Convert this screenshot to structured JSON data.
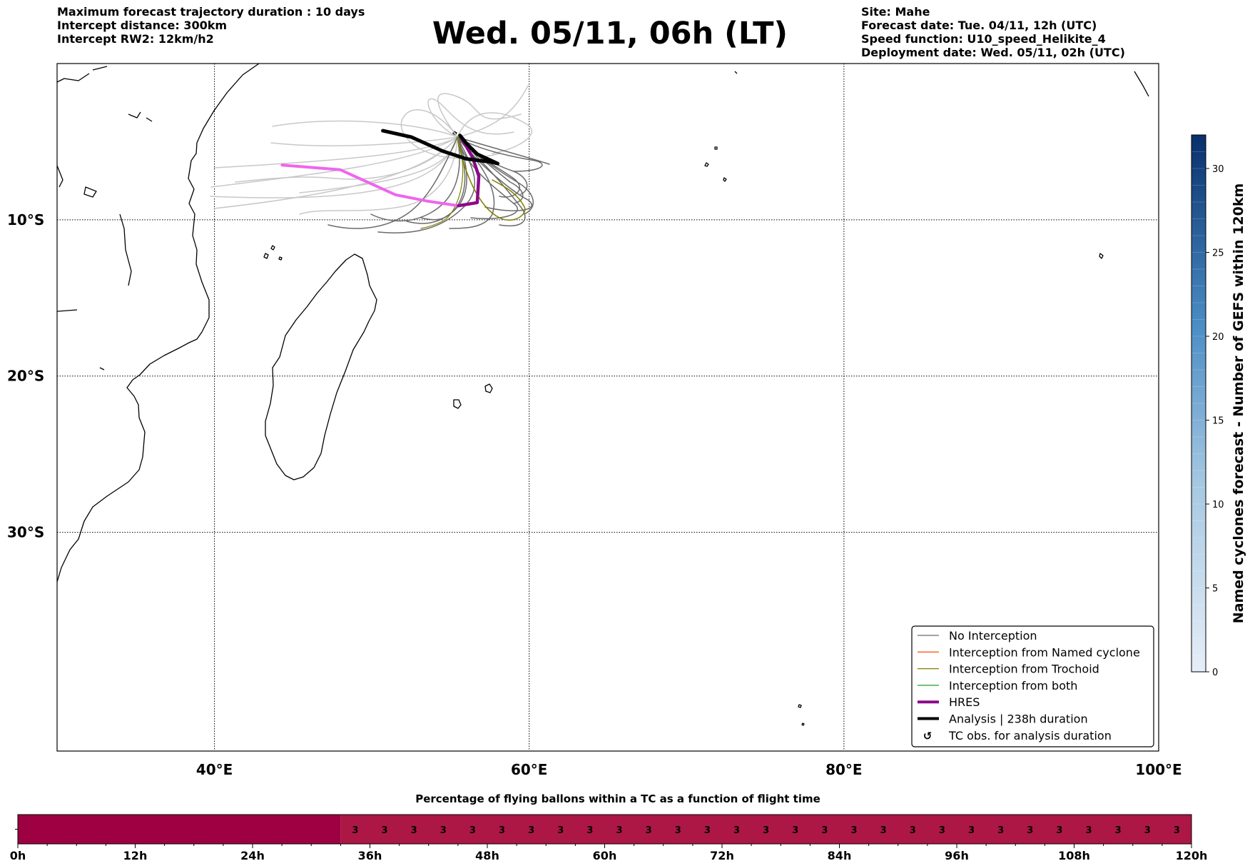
{
  "header": {
    "title": "Wed. 05/11, 06h (LT)",
    "left_lines": [
      "Maximum forecast trajectory duration : 10 days",
      "Intercept distance: 300km",
      "Intercept RW2: 12km/h2"
    ],
    "right_lines": [
      "Site: Mahe",
      "Forecast date: Tue. 04/11, 12h (UTC)",
      "Speed function: U10_speed_Helikite_4",
      "Deployment date: Wed. 05/11, 02h (UTC)"
    ]
  },
  "map": {
    "lon_range": [
      30,
      100
    ],
    "lat_range": [
      0,
      -44
    ],
    "lon_ticks": [
      {
        "value": 40,
        "label": "40°E"
      },
      {
        "value": 60,
        "label": "60°E"
      },
      {
        "value": 80,
        "label": "80°E"
      },
      {
        "value": 100,
        "label": "100°E"
      }
    ],
    "lat_ticks": [
      {
        "value": -10,
        "label": "10°S"
      },
      {
        "value": -20,
        "label": "20°S"
      },
      {
        "value": -30,
        "label": "30°S"
      }
    ],
    "grid": "dotted",
    "colors": {
      "no_interception": "#6b6b6b",
      "light_ensemble": "#c8c8c8",
      "named_cyclone": "#ff5a1e",
      "trochoid": "#808000",
      "both": "#1f9f1f",
      "hres": "#8b0a8b",
      "hres_light": "#ee66ee",
      "analysis": "#000000"
    }
  },
  "legend": {
    "placement": "lower-right",
    "items": [
      {
        "label": "No Interception",
        "style": "thin",
        "color": "#6b6b6b"
      },
      {
        "label": "Interception from Named cyclone",
        "style": "thin",
        "color": "#ff5a1e"
      },
      {
        "label": "Interception from Trochoid",
        "style": "thin",
        "color": "#808000"
      },
      {
        "label": "Interception from both",
        "style": "thin",
        "color": "#1f9f1f"
      },
      {
        "label": "HRES",
        "style": "thick",
        "color": "#8b0a8b"
      },
      {
        "label": "Analysis | 238h duration",
        "style": "thick",
        "color": "#000000"
      },
      {
        "label": "TC obs. for analysis duration",
        "style": "marker",
        "color": "#000000"
      }
    ]
  },
  "colorbar": {
    "label": "Named cyclones forecast - Number of GEFS within 120km",
    "ticks": [
      0,
      5,
      10,
      15,
      20,
      25,
      30
    ],
    "range": [
      0,
      32
    ]
  },
  "timebar": {
    "title": "Percentage of flying ballons within a TC as a function of flight time",
    "ticks": [
      "0h",
      "12h",
      "24h",
      "36h",
      "48h",
      "60h",
      "72h",
      "84h",
      "96h",
      "108h",
      "120h"
    ],
    "cell_hours": 3,
    "cells_before_values": 11,
    "values": [
      "3",
      "3",
      "3",
      "3",
      "3",
      "3",
      "3",
      "3",
      "3",
      "3",
      "3",
      "3",
      "3",
      "3",
      "3",
      "3",
      "3",
      "3",
      "3",
      "3",
      "3",
      "3",
      "3",
      "3",
      "3",
      "3",
      "3",
      "3",
      "3"
    ],
    "color_zero": "#9e0142",
    "color_value": "#ad1746"
  },
  "chart_data": {
    "type": "line",
    "x_axis": "longitude (°E)",
    "y_axis": "latitude (°S negative)",
    "series": [
      {
        "name": "HRES",
        "points": [
          [
            44.3,
            -6.5
          ],
          [
            48,
            -6.8
          ],
          [
            51.5,
            -8.4
          ],
          [
            53.5,
            -8.8
          ],
          [
            55.5,
            -9.1
          ],
          [
            56.7,
            -8.9
          ],
          [
            56.8,
            -7.2
          ],
          [
            56.4,
            -6.0
          ],
          [
            55.6,
            -4.6
          ]
        ]
      },
      {
        "name": "Analysis | 238h duration",
        "points": [
          [
            50.7,
            -4.3
          ],
          [
            52.5,
            -4.7
          ],
          [
            54.5,
            -5.6
          ],
          [
            56.0,
            -6.1
          ],
          [
            57.6,
            -6.3
          ],
          [
            58.0,
            -6.4
          ],
          [
            56.7,
            -5.8
          ],
          [
            56.0,
            -5.1
          ],
          [
            55.6,
            -4.6
          ]
        ]
      }
    ]
  }
}
